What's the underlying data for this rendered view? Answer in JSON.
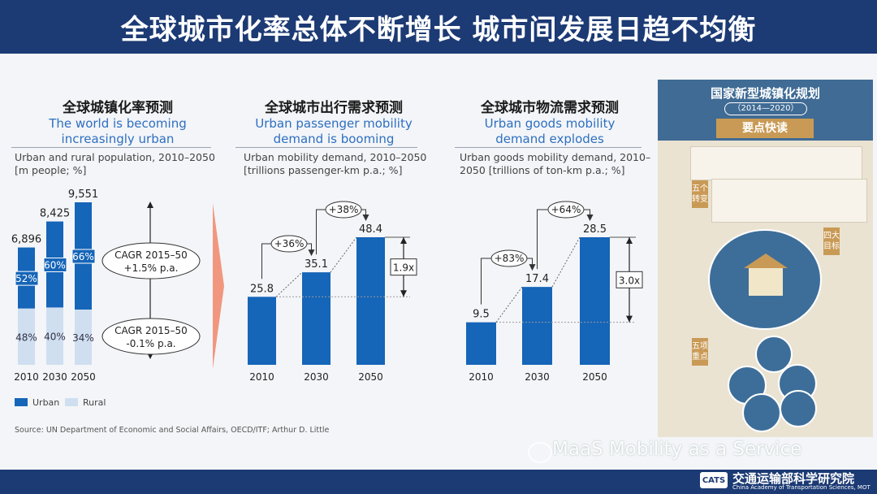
{
  "title": "全球城市化率总体不断增长  城市间发展日趋不均衡",
  "panels": [
    {
      "zh": "全球城镇化率预测",
      "en1": "The world is becoming",
      "en2": "increasingly urban",
      "sub1": "Urban and rural population, 2010–2050",
      "sub2": "[m people; %]"
    },
    {
      "zh": "全球城市出行需求预测",
      "en1": "Urban passenger mobility",
      "en2": "demand is booming",
      "sub1": "Urban mobility demand, 2010–2050",
      "sub2": "[trillions passenger-km p.a.; %]"
    },
    {
      "zh": "全球城市物流需求预测",
      "en1": "Urban goods mobility",
      "en2": "demand explodes",
      "sub1": "Urban goods mobility demand, 2010–",
      "sub2": "2050 [trillions of ton-km p.a.; %]"
    }
  ],
  "chart_data": [
    {
      "type": "bar",
      "categories": [
        "2010",
        "2030",
        "2050"
      ],
      "totals": [
        "6,896",
        "8,425",
        "9,551"
      ],
      "total_values": [
        6896,
        8425,
        9551
      ],
      "series": [
        {
          "name": "Urban",
          "share_pct": [
            52,
            60,
            66
          ],
          "labels": [
            "52%",
            "60%",
            "66%"
          ]
        },
        {
          "name": "Rural",
          "share_pct": [
            48,
            40,
            34
          ],
          "labels": [
            "48%",
            "40%",
            "34%"
          ]
        }
      ],
      "annotations": [
        {
          "line1": "CAGR 2015–50",
          "line2": "+1.5% p.a."
        },
        {
          "line1": "CAGR 2015–50",
          "line2": "-0.1% p.a."
        }
      ],
      "legend": [
        "Urban",
        "Rural"
      ]
    },
    {
      "type": "bar",
      "categories": [
        "2010",
        "2030",
        "2050"
      ],
      "values": [
        25.8,
        35.1,
        48.4
      ],
      "labels": [
        "25.8",
        "35.1",
        "48.4"
      ],
      "growth_labels": [
        "+36%",
        "+38%"
      ],
      "multiple": "1.9x"
    },
    {
      "type": "bar",
      "categories": [
        "2010",
        "2030",
        "2050"
      ],
      "values": [
        9.5,
        17.4,
        28.5
      ],
      "labels": [
        "9.5",
        "17.4",
        "28.5"
      ],
      "growth_labels": [
        "+83%",
        "+64%"
      ],
      "multiple": "3.0x"
    }
  ],
  "source": "Source: UN Department of Economic and Social Affairs, OECD/ITF;  Arthur D. Little",
  "watermark": "MaaS Mobility as a Service",
  "poster": {
    "title": "国家新型城镇化规划",
    "years": "（2014—2020）",
    "ribbon": "要点快读",
    "tag1": "五个转变",
    "tag2": "四大目标",
    "tag3": "五项重点"
  },
  "logo": {
    "abbr": "CATS",
    "zh": "交通运输部科学研究院",
    "en": "China Academy of Transportation Sciences, MOT"
  },
  "colors": {
    "banner": "#1c3a74",
    "bar": "#1565b8",
    "rural": "#cfdff0",
    "arrow": "#f08060"
  }
}
